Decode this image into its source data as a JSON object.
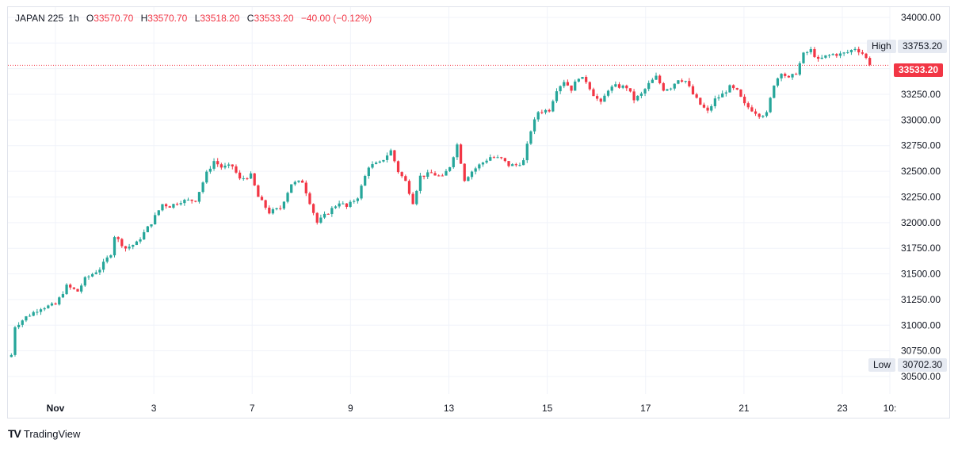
{
  "legend": {
    "symbol": "JAPAN 225",
    "interval": "1h",
    "open_label": "O",
    "open": "33570.70",
    "high_label": "H",
    "high": "33570.70",
    "low_label": "L",
    "low": "33518.20",
    "close_label": "C",
    "close": "33533.20",
    "change": "−40.00 (−0.12%)"
  },
  "markers": {
    "high_label": "High",
    "high_value": "33753.20",
    "low_label": "Low",
    "low_value": "30702.30",
    "last_value": "33533.20"
  },
  "brand": {
    "name": "TradingView"
  },
  "colors": {
    "up": "#26a69a",
    "down": "#f23645",
    "grid": "#f0f3fa",
    "axis_text": "#131722",
    "last_line": "#f23645"
  },
  "chart_data": {
    "type": "candlestick",
    "x_tick_labels": [
      "Nov",
      "3",
      "7",
      "9",
      "13",
      "15",
      "17",
      "21",
      "23",
      "10:"
    ],
    "y_tick_labels": [
      "30500.00",
      "30750.00",
      "31000.00",
      "31250.00",
      "31500.00",
      "31750.00",
      "32000.00",
      "32250.00",
      "32500.00",
      "32750.00",
      "33000.00",
      "33250.00",
      "33500.00",
      "33750.00",
      "34000.00"
    ],
    "ylim": [
      30330,
      34100
    ],
    "grid": true,
    "last_price": 33533.2,
    "period_high": 33753.2,
    "period_low": 30702.3,
    "price_path": [
      [
        0,
        30710
      ],
      [
        1,
        30990
      ],
      [
        4,
        31080
      ],
      [
        8,
        31170
      ],
      [
        12,
        31200
      ],
      [
        15,
        31380
      ],
      [
        18,
        31330
      ],
      [
        20,
        31450
      ],
      [
        24,
        31550
      ],
      [
        27,
        31700
      ],
      [
        28,
        31870
      ],
      [
        31,
        31750
      ],
      [
        34,
        31800
      ],
      [
        38,
        32000
      ],
      [
        41,
        32180
      ],
      [
        43,
        32160
      ],
      [
        46,
        32210
      ],
      [
        50,
        32220
      ],
      [
        53,
        32480
      ],
      [
        55,
        32600
      ],
      [
        57,
        32540
      ],
      [
        60,
        32550
      ],
      [
        62,
        32420
      ],
      [
        65,
        32460
      ],
      [
        67,
        32250
      ],
      [
        70,
        32100
      ],
      [
        73,
        32140
      ],
      [
        76,
        32380
      ],
      [
        79,
        32400
      ],
      [
        81,
        32200
      ],
      [
        83,
        32000
      ],
      [
        86,
        32100
      ],
      [
        89,
        32200
      ],
      [
        91,
        32150
      ],
      [
        94,
        32250
      ],
      [
        97,
        32550
      ],
      [
        100,
        32580
      ],
      [
        103,
        32700
      ],
      [
        105,
        32500
      ],
      [
        107,
        32400
      ],
      [
        109,
        32200
      ],
      [
        111,
        32450
      ],
      [
        114,
        32480
      ],
      [
        117,
        32440
      ],
      [
        119,
        32550
      ],
      [
        121,
        32760
      ],
      [
        123,
        32420
      ],
      [
        125,
        32500
      ],
      [
        127,
        32560
      ],
      [
        130,
        32640
      ],
      [
        133,
        32620
      ],
      [
        135,
        32560
      ],
      [
        137,
        32560
      ],
      [
        139,
        32600
      ],
      [
        141,
        32900
      ],
      [
        143,
        33080
      ],
      [
        146,
        33100
      ],
      [
        148,
        33300
      ],
      [
        150,
        33380
      ],
      [
        152,
        33300
      ],
      [
        154,
        33420
      ],
      [
        156,
        33380
      ],
      [
        158,
        33250
      ],
      [
        160,
        33160
      ],
      [
        162,
        33300
      ],
      [
        164,
        33330
      ],
      [
        167,
        33320
      ],
      [
        169,
        33200
      ],
      [
        171,
        33250
      ],
      [
        173,
        33350
      ],
      [
        175,
        33420
      ],
      [
        177,
        33300
      ],
      [
        179,
        33320
      ],
      [
        181,
        33400
      ],
      [
        183,
        33380
      ],
      [
        185,
        33250
      ],
      [
        187,
        33150
      ],
      [
        189,
        33080
      ],
      [
        191,
        33200
      ],
      [
        193,
        33250
      ],
      [
        195,
        33320
      ],
      [
        197,
        33280
      ],
      [
        199,
        33150
      ],
      [
        201,
        33100
      ],
      [
        203,
        33050
      ],
      [
        205,
        33060
      ],
      [
        207,
        33350
      ],
      [
        209,
        33470
      ],
      [
        211,
        33400
      ],
      [
        213,
        33460
      ],
      [
        215,
        33640
      ],
      [
        217,
        33680
      ],
      [
        219,
        33580
      ],
      [
        221,
        33620
      ],
      [
        223,
        33640
      ],
      [
        225,
        33640
      ],
      [
        227,
        33660
      ],
      [
        229,
        33700
      ],
      [
        231,
        33650
      ],
      [
        233,
        33550
      ]
    ]
  }
}
